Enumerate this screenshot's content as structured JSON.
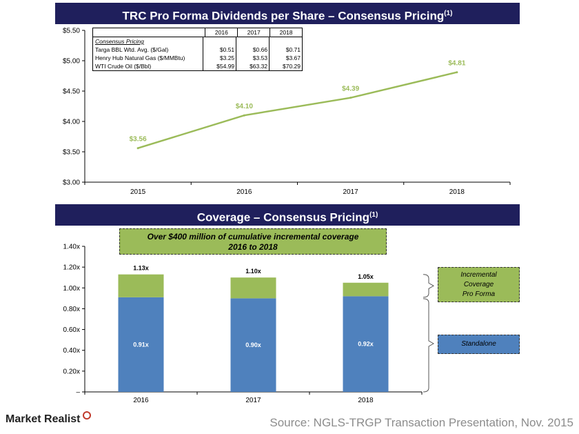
{
  "chart_data": [
    {
      "type": "line",
      "title": "TRC Pro Forma Dividends per Share – Consensus Pricing",
      "title_sup": "(1)",
      "categories": [
        "2015",
        "2016",
        "2017",
        "2018"
      ],
      "values": [
        3.56,
        4.1,
        4.39,
        4.81
      ],
      "value_labels": [
        "$3.56",
        "$4.10",
        "$4.39",
        "$4.81"
      ],
      "ylim": [
        3.0,
        5.5
      ],
      "yticks": [
        "$3.00",
        "$3.50",
        "$4.00",
        "$4.50",
        "$5.00",
        "$5.50"
      ],
      "grid": false,
      "line_color": "#9bbb59"
    },
    {
      "type": "bar",
      "stacked": true,
      "title": "Coverage – Consensus Pricing",
      "title_sup": "(1)",
      "categories": [
        "2016",
        "2017",
        "2018"
      ],
      "series": [
        {
          "name": "Standalone",
          "values": [
            0.91,
            0.9,
            0.92
          ],
          "labels": [
            "0.91x",
            "0.90x",
            "0.92x"
          ],
          "color": "#4f81bd"
        },
        {
          "name": "Incremental Coverage Pro Forma",
          "values": [
            0.22,
            0.2,
            0.13
          ],
          "color": "#9bbb59"
        }
      ],
      "totals": [
        "1.13x",
        "1.10x",
        "1.05x"
      ],
      "total_values": [
        1.13,
        1.1,
        1.05
      ],
      "ylim": [
        0,
        1.4
      ],
      "yticks": [
        "–",
        "0.20x",
        "0.40x",
        "0.60x",
        "0.80x",
        "1.00x",
        "1.20x",
        "1.40x"
      ],
      "grid": false
    }
  ],
  "pricing_table": {
    "years": [
      "2016",
      "2017",
      "2018"
    ],
    "subtitle": "Consensus Pricing",
    "rows": [
      {
        "label": "Targa BBL Wtd. Avg. ($/Gal)",
        "values": [
          "$0.51",
          "$0.66",
          "$0.71"
        ]
      },
      {
        "label": "Henry Hub Natural Gas ($/MMBtu)",
        "values": [
          "$3.25",
          "$3.53",
          "$3.67"
        ]
      },
      {
        "label": "WTI Crude Oil ($/Bbl)",
        "values": [
          "$54.99",
          "$63.32",
          "$70.29"
        ]
      }
    ]
  },
  "callout": {
    "line1": "Over $400 million of cumulative incremental coverage",
    "line2": "2016 to 2018"
  },
  "legend": {
    "incremental_lines": [
      "Incremental",
      "Coverage",
      "Pro Forma"
    ],
    "standalone": "Standalone"
  },
  "footer": {
    "logo": "Market Realist",
    "source": "Source: NGLS-TRGP Transaction Presentation, Nov. 2015"
  }
}
